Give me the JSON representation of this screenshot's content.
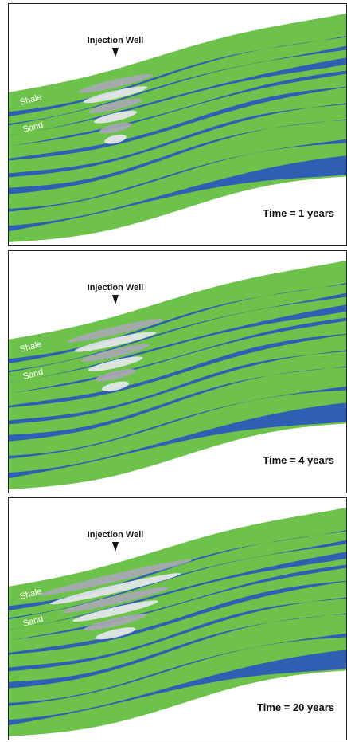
{
  "panels": [
    {
      "well_label": "Injection Well",
      "layers": [
        "Shale",
        "Sand"
      ],
      "time_label": "Time = 1 years"
    },
    {
      "well_label": "Injection Well",
      "layers": [
        "Shale",
        "Sand"
      ],
      "time_label": "Time = 4 years"
    },
    {
      "well_label": "Injection Well",
      "layers": [
        "Shale",
        "Sand"
      ],
      "time_label": "Time = 20 years"
    }
  ]
}
